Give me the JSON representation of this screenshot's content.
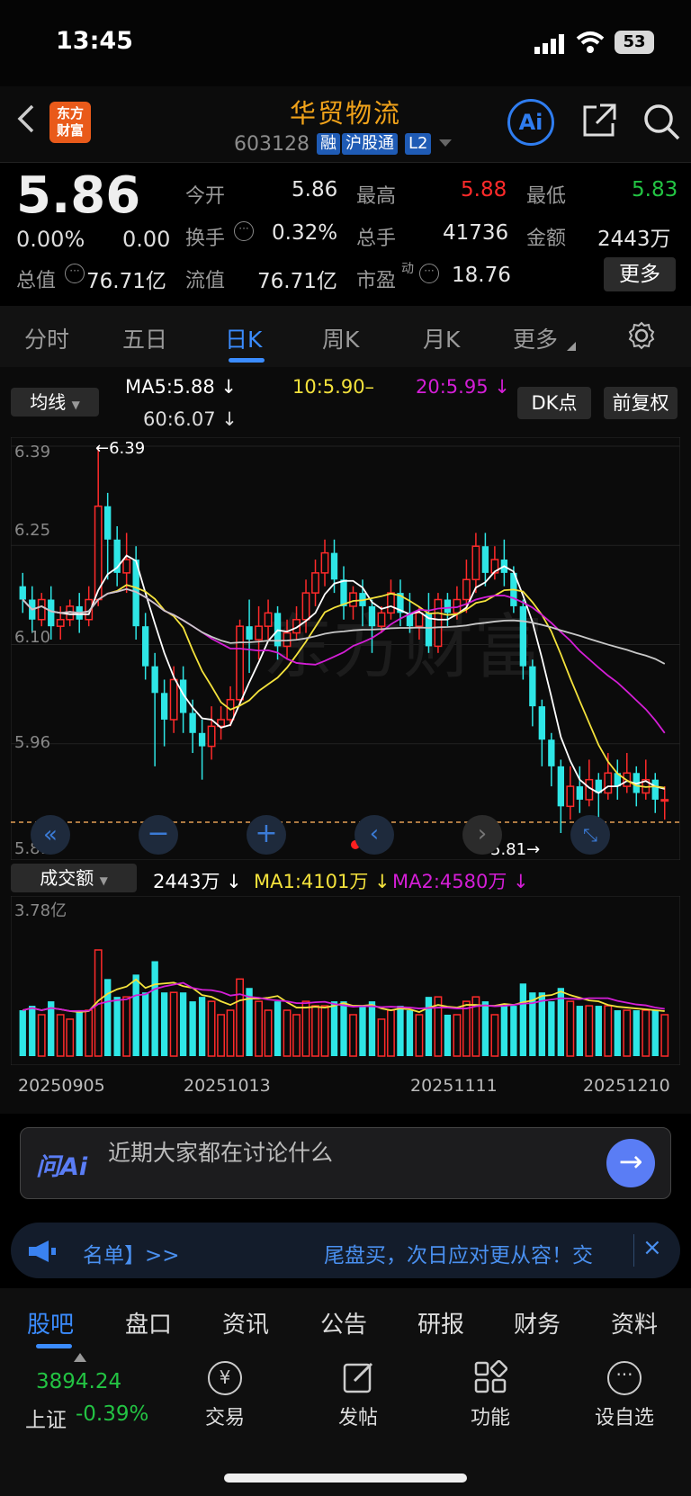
{
  "status_bar": {
    "time": "13:45",
    "battery": "53"
  },
  "header": {
    "title": "华贸物流",
    "code": "603128",
    "tags": [
      "融",
      "沪股通",
      "L2"
    ]
  },
  "quote": {
    "price": "5.86",
    "change_pct": "0.00%",
    "change": "0.00",
    "stats": {
      "open_label": "今开",
      "open": "5.86",
      "high_label": "最高",
      "high": "5.88",
      "low_label": "最低",
      "low": "5.83",
      "turnover_label": "换手",
      "turnover": "0.32%",
      "volume_label": "总手",
      "volume": "41736",
      "amount_label": "金额",
      "amount": "2443万",
      "total_mv_label": "总值",
      "total_mv": "76.71亿",
      "float_mv_label": "流值",
      "float_mv": "76.71亿",
      "pe_label": "市盈",
      "pe_sup": "动",
      "pe": "18.76"
    },
    "more_button": "更多"
  },
  "period_tabs": [
    "分时",
    "五日",
    "日K",
    "周K",
    "月K",
    "更多"
  ],
  "active_tab": "日K",
  "chart_controls": {
    "indicator_select": "均线",
    "ma5": "MA5:5.88 ↓",
    "ma10": "10:5.90–",
    "ma20": "20:5.95 ↓",
    "ma60": "60:6.07 ↓",
    "dk_button": "DK点",
    "adjust_button": "前复权"
  },
  "price_axis": [
    "6.39",
    "6.25",
    "6.10",
    "5.96",
    "5.81"
  ],
  "annotations": {
    "high": "←6.39",
    "low": "5.81→"
  },
  "volume_controls": {
    "select": "成交额",
    "current": "2443万 ↓",
    "ma1": "MA1:4101万 ↓",
    "ma2": "MA2:4580万 ↓",
    "axis_max": "3.78亿"
  },
  "date_axis": [
    "20250905",
    "20251013",
    "20251111",
    "20251210"
  ],
  "colors": {
    "up": "#ff2a2a",
    "down": "#2ee6e6",
    "ma5": "#ffffff",
    "ma10": "#f4e23c",
    "ma20": "#d41ed6",
    "ma60": "#c8c8c8",
    "accent": "#f0a21a"
  },
  "ask_ai": {
    "brand": "问Ai",
    "placeholder": "近期大家都在讨论什么"
  },
  "notice": {
    "left": "名单】>>",
    "right": "尾盘买，次日应对更从容！交"
  },
  "bottom_tabs": [
    "股吧",
    "盘口",
    "资讯",
    "公告",
    "研报",
    "财务",
    "资料"
  ],
  "bottom_nav": {
    "index_value": "3894.24",
    "index_name": "上证",
    "index_change": "-0.39%",
    "items": [
      "交易",
      "发帖",
      "功能",
      "设自选"
    ]
  },
  "chart_data": {
    "type": "candlestick",
    "ylim": [
      5.81,
      6.39
    ],
    "candles_approx": [
      [
        6.18,
        6.16,
        6.2,
        6.14
      ],
      [
        6.16,
        6.13,
        6.18,
        6.11
      ],
      [
        6.13,
        6.16,
        6.17,
        6.12
      ],
      [
        6.16,
        6.12,
        6.18,
        6.1
      ],
      [
        6.12,
        6.13,
        6.15,
        6.1
      ],
      [
        6.13,
        6.15,
        6.16,
        6.12
      ],
      [
        6.15,
        6.13,
        6.17,
        6.11
      ],
      [
        6.13,
        6.16,
        6.18,
        6.12
      ],
      [
        6.16,
        6.3,
        6.39,
        6.15
      ],
      [
        6.3,
        6.25,
        6.32,
        6.19
      ],
      [
        6.25,
        6.2,
        6.27,
        6.18
      ],
      [
        6.2,
        6.22,
        6.26,
        6.17
      ],
      [
        6.22,
        6.12,
        6.24,
        6.1
      ],
      [
        6.12,
        6.06,
        6.14,
        6.04
      ],
      [
        6.06,
        6.02,
        6.08,
        5.91
      ],
      [
        6.02,
        5.98,
        6.04,
        5.94
      ],
      [
        5.98,
        6.04,
        6.06,
        5.96
      ],
      [
        6.04,
        5.99,
        6.06,
        5.96
      ],
      [
        5.99,
        5.96,
        6.01,
        5.93
      ],
      [
        5.96,
        5.94,
        5.98,
        5.89
      ],
      [
        5.94,
        5.97,
        6.0,
        5.92
      ],
      [
        5.97,
        5.98,
        6.0,
        5.95
      ],
      [
        5.98,
        6.01,
        6.03,
        5.97
      ],
      [
        6.01,
        6.12,
        6.13,
        6.0
      ],
      [
        6.12,
        6.1,
        6.16,
        6.05
      ],
      [
        6.1,
        6.12,
        6.15,
        6.07
      ],
      [
        6.12,
        6.14,
        6.16,
        6.1
      ],
      [
        6.14,
        6.09,
        6.15,
        6.07
      ],
      [
        6.09,
        6.11,
        6.13,
        6.07
      ],
      [
        6.11,
        6.13,
        6.15,
        6.1
      ],
      [
        6.13,
        6.17,
        6.19,
        6.11
      ],
      [
        6.17,
        6.2,
        6.22,
        6.15
      ],
      [
        6.2,
        6.23,
        6.25,
        6.18
      ],
      [
        6.23,
        6.19,
        6.25,
        6.17
      ],
      [
        6.19,
        6.15,
        6.21,
        6.13
      ],
      [
        6.15,
        6.17,
        6.18,
        6.13
      ],
      [
        6.17,
        6.15,
        6.19,
        6.12
      ],
      [
        6.15,
        6.12,
        6.16,
        6.08
      ],
      [
        6.12,
        6.14,
        6.15,
        6.11
      ],
      [
        6.14,
        6.17,
        6.19,
        6.13
      ],
      [
        6.17,
        6.14,
        6.19,
        6.12
      ],
      [
        6.14,
        6.12,
        6.17,
        6.11
      ],
      [
        6.12,
        6.14,
        6.15,
        6.1
      ],
      [
        6.14,
        6.09,
        6.17,
        6.08
      ],
      [
        6.09,
        6.16,
        6.17,
        6.08
      ],
      [
        6.16,
        6.14,
        6.17,
        6.12
      ],
      [
        6.14,
        6.16,
        6.18,
        6.13
      ],
      [
        6.16,
        6.19,
        6.22,
        6.14
      ],
      [
        6.19,
        6.24,
        6.26,
        6.17
      ],
      [
        6.24,
        6.2,
        6.26,
        6.18
      ],
      [
        6.2,
        6.22,
        6.24,
        6.19
      ],
      [
        6.22,
        6.2,
        6.25,
        6.18
      ],
      [
        6.2,
        6.15,
        6.21,
        6.14
      ],
      [
        6.15,
        6.06,
        6.16,
        6.04
      ],
      [
        6.06,
        6.0,
        6.07,
        5.97
      ],
      [
        6.0,
        5.95,
        6.01,
        5.91
      ],
      [
        5.95,
        5.91,
        5.96,
        5.88
      ],
      [
        5.91,
        5.85,
        5.92,
        5.81
      ],
      [
        5.85,
        5.88,
        5.91,
        5.83
      ],
      [
        5.88,
        5.86,
        5.91,
        5.84
      ],
      [
        5.86,
        5.89,
        5.92,
        5.85
      ],
      [
        5.89,
        5.87,
        5.9,
        5.83
      ],
      [
        5.87,
        5.9,
        5.93,
        5.86
      ],
      [
        5.9,
        5.88,
        5.92,
        5.86
      ],
      [
        5.88,
        5.9,
        5.93,
        5.87
      ],
      [
        5.9,
        5.87,
        5.91,
        5.85
      ],
      [
        5.87,
        5.89,
        5.92,
        5.86
      ],
      [
        5.89,
        5.86,
        5.9,
        5.84
      ],
      [
        5.86,
        5.86,
        5.88,
        5.83
      ]
    ],
    "volume_ylim": [
      0,
      3.78
    ]
  }
}
